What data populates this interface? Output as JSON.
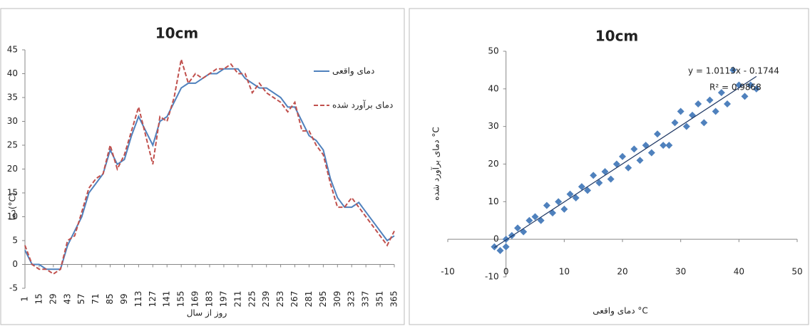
{
  "chart_data": [
    {
      "type": "line",
      "title": "10cm",
      "x_label": "روز از سال",
      "y_label": "دما(°C)",
      "x": [
        1,
        8,
        15,
        22,
        29,
        36,
        43,
        50,
        57,
        64,
        71,
        78,
        85,
        92,
        99,
        106,
        113,
        120,
        127,
        134,
        141,
        148,
        155,
        162,
        169,
        176,
        183,
        190,
        197,
        204,
        211,
        218,
        225,
        232,
        239,
        246,
        253,
        260,
        267,
        274,
        281,
        288,
        295,
        302,
        309,
        316,
        323,
        330,
        337,
        344,
        351,
        358,
        365
      ],
      "xlim": [
        1,
        365
      ],
      "xticks": [
        1,
        15,
        29,
        43,
        57,
        71,
        85,
        99,
        113,
        127,
        141,
        155,
        169,
        183,
        197,
        211,
        225,
        239,
        253,
        267,
        281,
        295,
        309,
        323,
        337,
        351,
        365
      ],
      "ylim": [
        -5,
        45
      ],
      "yticks": [
        -5,
        0,
        5,
        10,
        15,
        20,
        25,
        30,
        35,
        40,
        45
      ],
      "series": [
        {
          "name": "دمای واقعی",
          "color": "#4f81bd",
          "style": "solid",
          "values": [
            3,
            0,
            0,
            -1,
            -1,
            -1,
            4,
            7,
            10,
            15,
            17,
            19,
            24,
            21,
            22,
            27,
            31,
            28,
            25,
            30,
            31,
            34,
            37,
            38,
            38,
            39,
            40,
            40,
            41,
            41,
            41,
            39,
            38,
            37,
            37,
            36,
            35,
            33,
            33,
            30,
            27,
            26,
            24,
            18,
            14,
            12,
            12,
            13,
            11,
            9,
            7,
            5,
            6
          ]
        },
        {
          "name": "دمای برآورد شده",
          "color": "#c0504d",
          "style": "dashed",
          "values": [
            4,
            0,
            -1,
            -1,
            -2,
            -1,
            5,
            6,
            11,
            16,
            18,
            19,
            25,
            20,
            23,
            28,
            33,
            27,
            21,
            31,
            30,
            35,
            43,
            38,
            40,
            39,
            40,
            41,
            41,
            42,
            40,
            40,
            36,
            38,
            36,
            35,
            34,
            32,
            34,
            28,
            28,
            25,
            23,
            17,
            12,
            12,
            14,
            12,
            10,
            8,
            6,
            4,
            7
          ]
        }
      ]
    },
    {
      "type": "scatter",
      "title": "10cm",
      "x_label": "دمای واقعی °C",
      "y_label": "دمای برآورد شده °C",
      "color": "#4f81bd",
      "x": [
        -2,
        -1,
        0,
        0,
        1,
        2,
        3,
        4,
        5,
        6,
        7,
        8,
        9,
        10,
        11,
        12,
        13,
        14,
        15,
        16,
        17,
        18,
        19,
        20,
        21,
        22,
        23,
        24,
        25,
        26,
        27,
        28,
        29,
        30,
        31,
        32,
        33,
        34,
        35,
        36,
        37,
        38,
        39,
        40,
        41,
        42,
        43
      ],
      "values": [
        -2,
        -3,
        0,
        -2,
        1,
        3,
        2,
        5,
        6,
        5,
        9,
        7,
        10,
        8,
        12,
        11,
        14,
        13,
        17,
        15,
        18,
        16,
        20,
        22,
        19,
        24,
        21,
        25,
        23,
        28,
        25,
        25,
        31,
        34,
        30,
        33,
        36,
        31,
        37,
        34,
        39,
        36,
        45,
        41,
        38,
        41,
        40
      ],
      "xlim": [
        -10,
        50
      ],
      "xticks": [
        -10,
        0,
        10,
        20,
        30,
        40,
        50
      ],
      "ylim": [
        -10,
        50
      ],
      "yticks": [
        -10,
        0,
        10,
        20,
        30,
        40,
        50
      ],
      "trendline": {
        "label": "y = 1.0113x - 0.1744",
        "slope": 1.0113,
        "intercept": -0.1744,
        "r2_label": "R² = 0.9868",
        "color": "#1f3864"
      }
    }
  ]
}
